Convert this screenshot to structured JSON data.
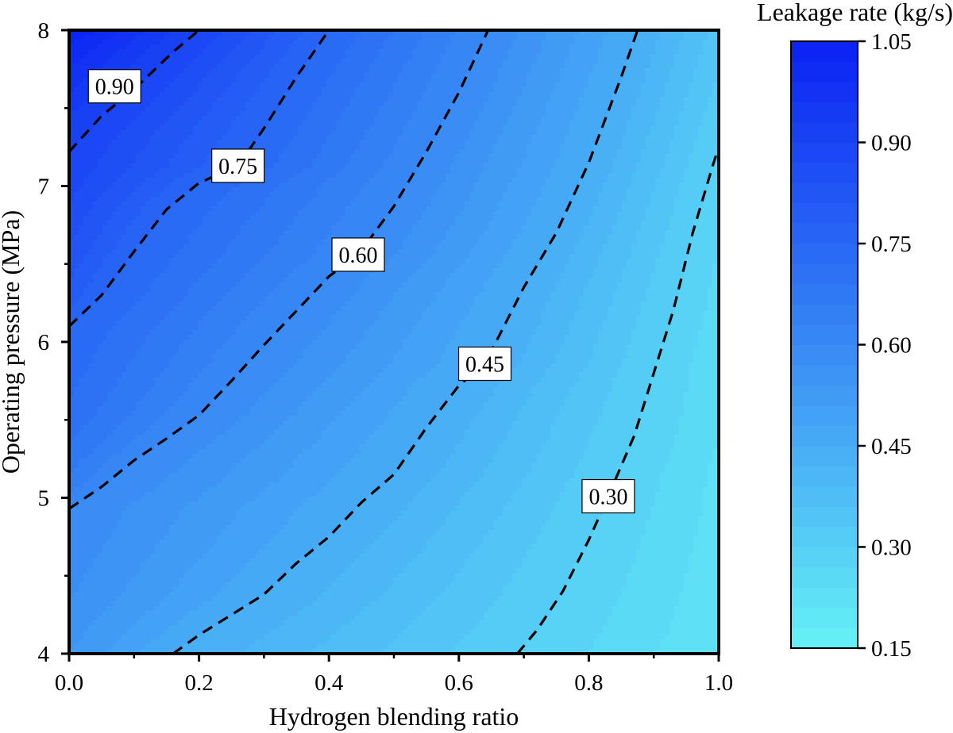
{
  "chart_data": {
    "type": "heatmap",
    "subtype": "filled-contour",
    "xlabel": "Hydrogen blending ratio",
    "ylabel": "Operating pressure (MPa)",
    "xlim": [
      0.0,
      1.0
    ],
    "ylim": [
      4,
      8
    ],
    "xticks": [
      "0.0",
      "0.2",
      "0.4",
      "0.6",
      "0.8",
      "1.0"
    ],
    "yticks": [
      "4",
      "5",
      "6",
      "7",
      "8"
    ],
    "colorbar": {
      "title": "Leakage rate (kg/s)",
      "range": [
        0.15,
        1.05
      ],
      "ticks": [
        "0.15",
        "0.30",
        "0.45",
        "0.60",
        "0.75",
        "0.90",
        "1.05"
      ],
      "levels": 30,
      "color_low": "#66f2f6",
      "color_high": "#0a22f4"
    },
    "contour_style": "dashed black",
    "contours": [
      {
        "level": 0.9,
        "label": "0.90",
        "label_at": [
          0.07,
          7.64
        ],
        "points": [
          [
            0.0,
            7.22
          ],
          [
            0.05,
            7.45
          ],
          [
            0.1,
            7.62
          ],
          [
            0.16,
            7.86
          ],
          [
            0.2,
            8.0
          ]
        ]
      },
      {
        "level": 0.75,
        "label": "0.75",
        "label_at": [
          0.26,
          7.13
        ],
        "points": [
          [
            0.0,
            6.1
          ],
          [
            0.05,
            6.3
          ],
          [
            0.1,
            6.58
          ],
          [
            0.15,
            6.85
          ],
          [
            0.2,
            7.02
          ],
          [
            0.26,
            7.13
          ],
          [
            0.3,
            7.37
          ],
          [
            0.35,
            7.7
          ],
          [
            0.4,
            8.0
          ]
        ]
      },
      {
        "level": 0.6,
        "label": "0.60",
        "label_at": [
          0.445,
          6.56
        ],
        "points": [
          [
            0.0,
            4.93
          ],
          [
            0.05,
            5.07
          ],
          [
            0.1,
            5.24
          ],
          [
            0.15,
            5.38
          ],
          [
            0.2,
            5.53
          ],
          [
            0.25,
            5.75
          ],
          [
            0.3,
            5.98
          ],
          [
            0.35,
            6.2
          ],
          [
            0.4,
            6.42
          ],
          [
            0.445,
            6.56
          ],
          [
            0.5,
            6.87
          ],
          [
            0.55,
            7.22
          ],
          [
            0.6,
            7.6
          ],
          [
            0.645,
            8.0
          ]
        ]
      },
      {
        "level": 0.45,
        "label": "0.45",
        "label_at": [
          0.64,
          5.86
        ],
        "points": [
          [
            0.16,
            4.0
          ],
          [
            0.2,
            4.12
          ],
          [
            0.25,
            4.25
          ],
          [
            0.3,
            4.38
          ],
          [
            0.35,
            4.58
          ],
          [
            0.4,
            4.75
          ],
          [
            0.45,
            4.97
          ],
          [
            0.5,
            5.15
          ],
          [
            0.55,
            5.45
          ],
          [
            0.6,
            5.72
          ],
          [
            0.64,
            5.86
          ],
          [
            0.7,
            6.35
          ],
          [
            0.75,
            6.7
          ],
          [
            0.8,
            7.15
          ],
          [
            0.85,
            7.7
          ],
          [
            0.875,
            8.0
          ]
        ]
      },
      {
        "level": 0.3,
        "label": "0.30",
        "label_at": [
          0.83,
          5.01
        ],
        "points": [
          [
            0.69,
            4.0
          ],
          [
            0.72,
            4.15
          ],
          [
            0.76,
            4.4
          ],
          [
            0.8,
            4.73
          ],
          [
            0.83,
            5.01
          ],
          [
            0.87,
            5.4
          ],
          [
            0.9,
            5.8
          ],
          [
            0.93,
            6.2
          ],
          [
            0.96,
            6.7
          ],
          [
            0.99,
            7.12
          ],
          [
            1.0,
            7.25
          ]
        ]
      }
    ]
  }
}
